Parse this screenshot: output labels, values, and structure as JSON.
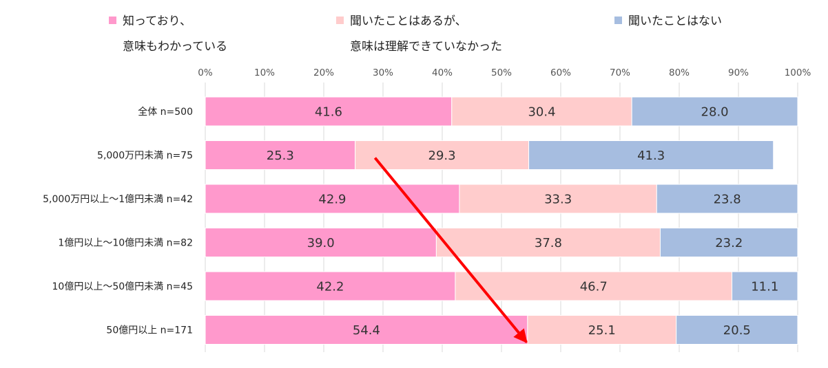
{
  "chart_data": {
    "type": "bar",
    "orientation": "horizontal-stacked-100",
    "categories": [
      "全体 n=500",
      "5,000万円未満 n=75",
      "5,000万円以上～1億円未満 n=42",
      "1億円以上～10億円未満 n=82",
      "10億円以上～50億円未満 n=45",
      "50億円以上 n=171"
    ],
    "series": [
      {
        "name": "知っており、意味もわかっている",
        "legend_lines": [
          "知っており、",
          "意味もわかっている"
        ],
        "color": "#ff99cc",
        "values": [
          41.6,
          25.3,
          42.9,
          39.0,
          42.2,
          54.4
        ]
      },
      {
        "name": "聞いたことはあるが、意味は理解できていなかった",
        "legend_lines": [
          "聞いたことはあるが、",
          "意味は理解できていなかった"
        ],
        "color": "#ffcccc",
        "values": [
          30.4,
          29.3,
          33.3,
          37.8,
          46.7,
          25.1
        ]
      },
      {
        "name": "聞いたことはない",
        "legend_lines": [
          "聞いたことはない"
        ],
        "color": "#a6bde0",
        "values": [
          28.0,
          41.3,
          23.8,
          23.2,
          11.1,
          20.5
        ]
      }
    ],
    "xlim": [
      0,
      100
    ],
    "x_ticks": [
      "0%",
      "10%",
      "20%",
      "30%",
      "40%",
      "50%",
      "60%",
      "70%",
      "80%",
      "90%",
      "100%"
    ],
    "x_axis_position": "top",
    "legend_position": "top",
    "grid": "vertical",
    "annotations": [
      {
        "type": "arrow",
        "color": "#ff0000",
        "from": {
          "category": "5,000万円未満 n=75",
          "x": 29
        },
        "to": {
          "category": "50億円以上 n=171",
          "x": 54
        }
      }
    ]
  }
}
